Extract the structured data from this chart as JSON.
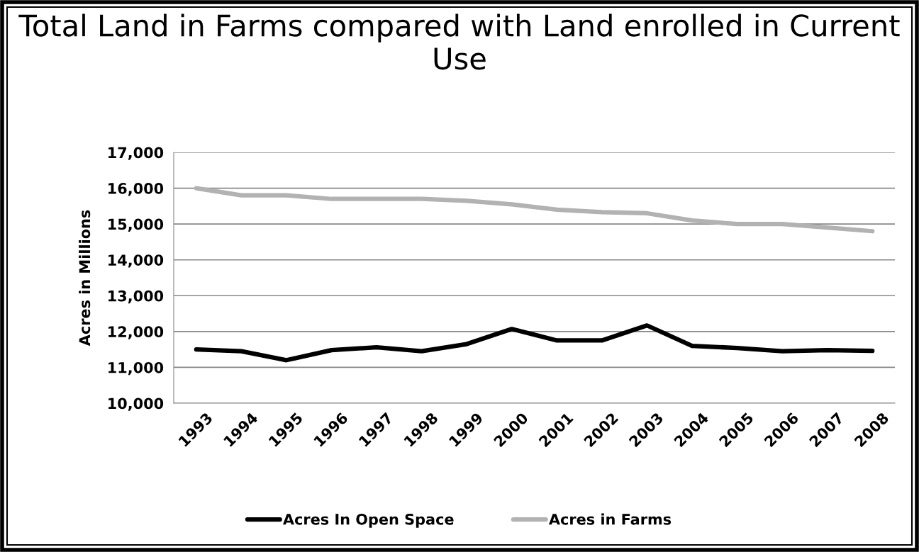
{
  "chart_data": {
    "type": "line",
    "title": "Total Land in Farms compared with Land enrolled in Current Use",
    "ylabel": "Acres in Millions",
    "categories": [
      "1993",
      "1994",
      "1995",
      "1996",
      "1997",
      "1998",
      "1999",
      "2000",
      "2001",
      "2002",
      "2003",
      "2004",
      "2005",
      "2006",
      "2007",
      "2008"
    ],
    "series": [
      {
        "name": "Acres In Open Space",
        "color": "#000000",
        "values": [
          11500,
          11450,
          11200,
          11480,
          11560,
          11450,
          11650,
          12070,
          11750,
          11750,
          12170,
          11600,
          11540,
          11450,
          11480,
          11460
        ]
      },
      {
        "name": "Acres in Farms",
        "color": "#b2b2b2",
        "values": [
          16000,
          15800,
          15800,
          15700,
          15700,
          15700,
          15650,
          15550,
          15400,
          15330,
          15300,
          15100,
          15000,
          15000,
          14900,
          14800
        ]
      }
    ],
    "ylim": [
      10000,
      17000
    ],
    "yticks": [
      {
        "value": 10000,
        "label": "10,000"
      },
      {
        "value": 11000,
        "label": "11,000"
      },
      {
        "value": 12000,
        "label": "12,000"
      },
      {
        "value": 13000,
        "label": "13,000"
      },
      {
        "value": 14000,
        "label": "14,000"
      },
      {
        "value": 15000,
        "label": "15,000"
      },
      {
        "value": 16000,
        "label": "16,000"
      },
      {
        "value": 17000,
        "label": "17,000"
      }
    ],
    "grid": "y",
    "legend": "bottom",
    "marker": "none",
    "line_style": "solid"
  }
}
